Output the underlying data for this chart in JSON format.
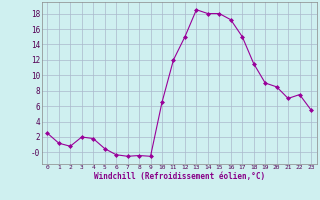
{
  "x": [
    0,
    1,
    2,
    3,
    4,
    5,
    6,
    7,
    8,
    9,
    10,
    11,
    12,
    13,
    14,
    15,
    16,
    17,
    18,
    19,
    20,
    21,
    22,
    23
  ],
  "y": [
    2.5,
    1.2,
    0.8,
    2.0,
    1.8,
    0.5,
    -0.3,
    -0.5,
    -0.4,
    -0.5,
    6.5,
    12.0,
    15.0,
    18.5,
    18.0,
    18.0,
    17.2,
    15.0,
    11.5,
    9.0,
    8.5,
    7.0,
    7.5,
    5.5
  ],
  "line_color": "#990099",
  "marker": "D",
  "marker_size": 2.0,
  "bg_color": "#cff0f0",
  "grid_color": "#aab8cc",
  "xlabel": "Windchill (Refroidissement éolien,°C)",
  "yticks": [
    0,
    2,
    4,
    6,
    8,
    10,
    12,
    14,
    16,
    18
  ],
  "ytick_labels": [
    "-0",
    "2",
    "4",
    "6",
    "8",
    "10",
    "12",
    "14",
    "16",
    "18"
  ],
  "ylim": [
    -1.5,
    19.5
  ],
  "xlim": [
    -0.5,
    23.5
  ]
}
